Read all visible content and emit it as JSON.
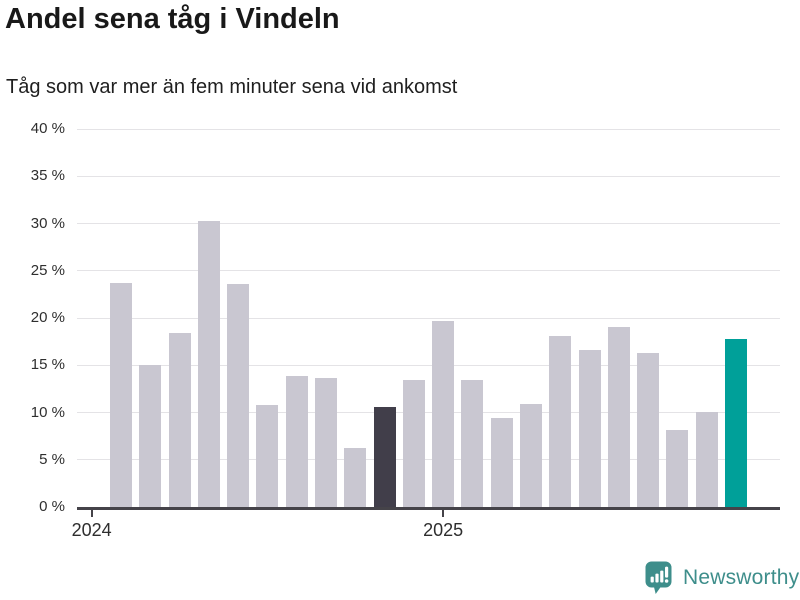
{
  "header": {
    "title": "Andel sena tåg i Vindeln",
    "subtitle": "Tåg som var mer än fem minuter sena vid ankomst"
  },
  "chart_data": {
    "type": "bar",
    "title": "Andel sena tåg i Vindeln",
    "subtitle": "Tåg som var mer än fem minuter sena vid ankomst",
    "unit": "%",
    "categories": [
      "2024-02",
      "2024-03",
      "2024-04",
      "2024-05",
      "2024-06",
      "2024-07",
      "2024-08",
      "2024-09",
      "2024-10",
      "2024-11",
      "2024-12",
      "2025-01",
      "2025-02",
      "2025-03",
      "2025-04",
      "2025-05",
      "2025-06",
      "2025-07",
      "2025-08",
      "2025-09",
      "2025-10",
      "2025-11"
    ],
    "values": [
      23.7,
      15.0,
      18.4,
      30.3,
      23.6,
      10.8,
      13.9,
      13.6,
      6.2,
      10.6,
      13.4,
      19.7,
      13.4,
      9.4,
      10.9,
      18.1,
      16.6,
      19.0,
      16.3,
      8.1,
      10.1,
      17.8
    ],
    "bar_styles": [
      "default",
      "default",
      "default",
      "default",
      "default",
      "default",
      "default",
      "default",
      "default",
      "dark",
      "default",
      "default",
      "default",
      "default",
      "default",
      "default",
      "default",
      "default",
      "default",
      "default",
      "default",
      "teal"
    ],
    "ylim": [
      0,
      40
    ],
    "y_tick_step": 5,
    "y_tick_labels": [
      "0 %",
      "5 %",
      "10 %",
      "15 %",
      "20 %",
      "25 %",
      "30 %",
      "35 %",
      "40 %"
    ],
    "x_ticks": [
      {
        "label": "2024",
        "slot": 0
      },
      {
        "label": "2025",
        "slot": 12
      }
    ],
    "x_domain_slots": 24,
    "first_bar_slot": 1,
    "grid": "horizontal",
    "legend": "none"
  },
  "colors": {
    "bar_default": "#c9c7d1",
    "bar_dark": "#413e4a",
    "bar_teal": "#00a099",
    "axis": "#454349",
    "gridline": "#e4e3e6",
    "title_text": "#191919",
    "tick_text": "#2e2e2e",
    "logo_teal": "#3e8e8b"
  },
  "footer": {
    "brand": "Newsworthy"
  }
}
